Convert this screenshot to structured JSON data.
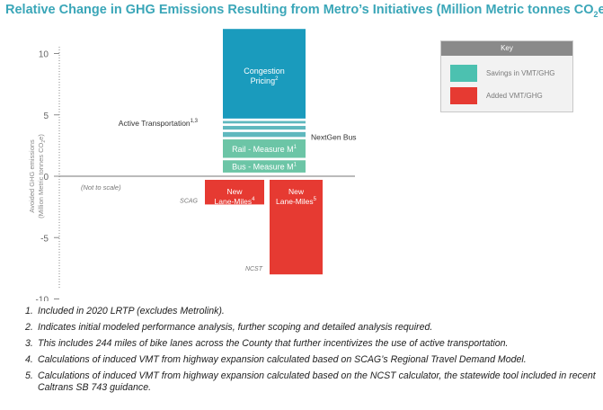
{
  "title": "Relative Change in GHG Emissions Resulting from Metro’s Initiatives (Million Metric tonnes CO",
  "title_sub": "2",
  "title_end": "e)",
  "colors": {
    "savings_dark": "#1a9bbd",
    "savings_light": "#6cc5a6",
    "added": "#e63a32"
  },
  "key": {
    "title": "Key",
    "items": [
      {
        "label": "Savings in VMT/GHG",
        "color": "#4cc1b0"
      },
      {
        "label": "Added VMT/GHG",
        "color": "#e63a32"
      }
    ]
  },
  "chart_data": {
    "type": "bar",
    "ylabel_line1": "Avoided GHG emissions",
    "ylabel_line2": "(Million Metric tonnes CO",
    "ylabel_sub": "2",
    "ylabel_end": "e)",
    "ylim": [
      -10,
      10
    ],
    "yticks": [
      "10",
      "5",
      "0",
      "-5",
      "-10"
    ],
    "ytick_values": [
      10,
      5,
      0,
      -5,
      -10
    ],
    "not_to_scale": "(Not to scale)",
    "segments": [
      {
        "name": "Bus - Measure M",
        "sup": "1",
        "start": 0.3,
        "end": 1.3,
        "color": "#6cc5a6",
        "label_position": "inside",
        "category": "savings"
      },
      {
        "name": "Rail - Measure M",
        "sup": "1",
        "start": 1.5,
        "end": 3.0,
        "color": "#6cc5a6",
        "label_position": "inside",
        "category": "savings"
      },
      {
        "name": "NextGen Bus",
        "sup": "",
        "start": 3.2,
        "end": 3.6,
        "color": "#5fb8be",
        "label_position": "right",
        "category": "savings"
      },
      {
        "name": "Active Transportation",
        "sup": "1,3",
        "start": 3.8,
        "end": 4.1,
        "color": "#5fb8be",
        "label_position": "left",
        "category": "savings"
      },
      {
        "name": "",
        "sup": "",
        "start": 4.3,
        "end": 4.5,
        "color": "#5fb8be",
        "label_position": "none",
        "category": "savings"
      },
      {
        "name": "Congestion Pricing",
        "sup": "2",
        "start": 4.7,
        "end": 12.0,
        "color": "#1a9bbd",
        "label_position": "inside-top",
        "category": "savings"
      }
    ],
    "added": [
      {
        "name": "New Lane-Miles",
        "sup": "4",
        "source": "SCAG",
        "value": -2.3
      },
      {
        "name": "New Lane-Miles",
        "sup": "5",
        "source": "NCST",
        "value": -8.0
      }
    ]
  },
  "notes": [
    {
      "num": "1.",
      "text": "Included in 2020 LRTP (excludes Metrolink)."
    },
    {
      "num": "2.",
      "text": "Indicates initial modeled performance analysis, further scoping and detailed analysis required."
    },
    {
      "num": "3.",
      "text": "This includes 244 miles of bike lanes across the County that further incentivizes the use of active transportation."
    },
    {
      "num": "4.",
      "text": "Calculations of induced VMT from highway expansion calculated based on SCAG’s Regional Travel Demand Model."
    },
    {
      "num": "5.",
      "text": "Calculations of induced VMT from highway expansion calculated based on the NCST calculator, the statewide tool included in recent Caltrans SB 743 guidance."
    }
  ]
}
